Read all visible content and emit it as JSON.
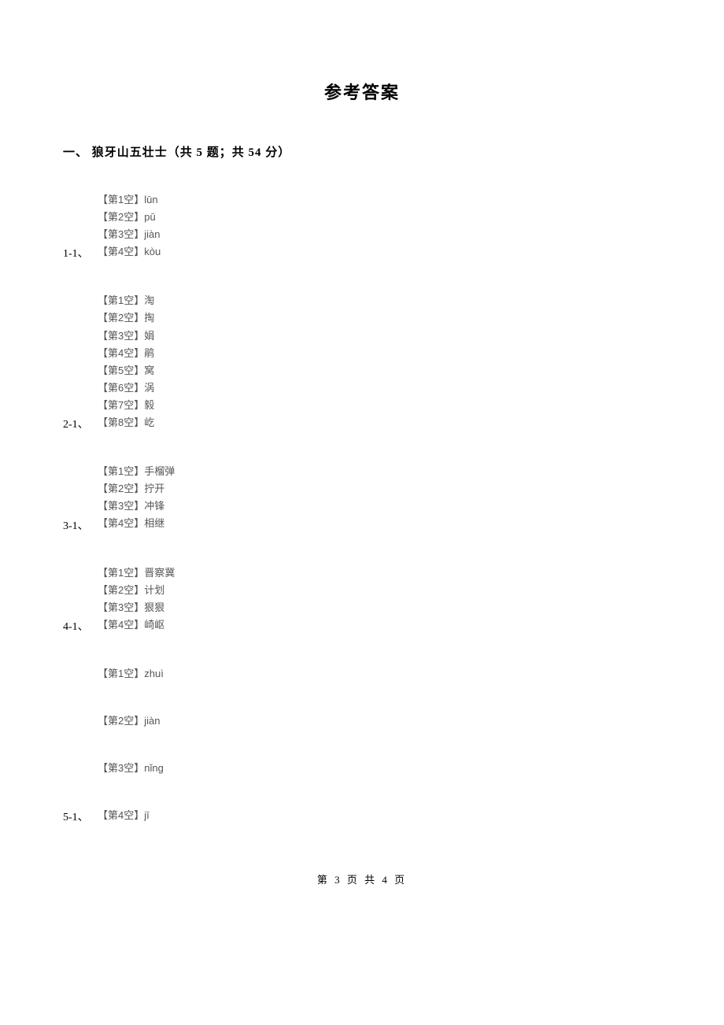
{
  "title": "参考答案",
  "section_heading": "一、 狼牙山五壮士（共 5 题；共 54 分）",
  "questions": [
    {
      "number": "1-1、",
      "answers": [
        "【第1空】lūn",
        "【第2空】pū",
        "【第3空】jiàn",
        "【第4空】kòu"
      ],
      "spaced": false
    },
    {
      "number": "2-1、",
      "answers": [
        "【第1空】淘",
        "【第2空】掏",
        "【第3空】娟",
        "【第4空】鹃",
        "【第5空】窝",
        "【第6空】涡",
        "【第7空】毅",
        "【第8空】屹"
      ],
      "spaced": false
    },
    {
      "number": "3-1、",
      "answers": [
        "【第1空】手榴弹",
        "【第2空】拧开",
        "【第3空】冲锋",
        "【第4空】相继"
      ],
      "spaced": false
    },
    {
      "number": "4-1、",
      "answers": [
        "【第1空】晋察冀",
        "【第2空】计划",
        "【第3空】狠狠",
        "【第4空】崎岖"
      ],
      "spaced": false
    },
    {
      "number": "5-1、",
      "answers": [
        "【第1空】zhuì",
        "【第2空】jiàn",
        "【第3空】nǐng",
        "【第4空】jī"
      ],
      "spaced": true
    }
  ],
  "footer": "第 3 页 共 4 页"
}
